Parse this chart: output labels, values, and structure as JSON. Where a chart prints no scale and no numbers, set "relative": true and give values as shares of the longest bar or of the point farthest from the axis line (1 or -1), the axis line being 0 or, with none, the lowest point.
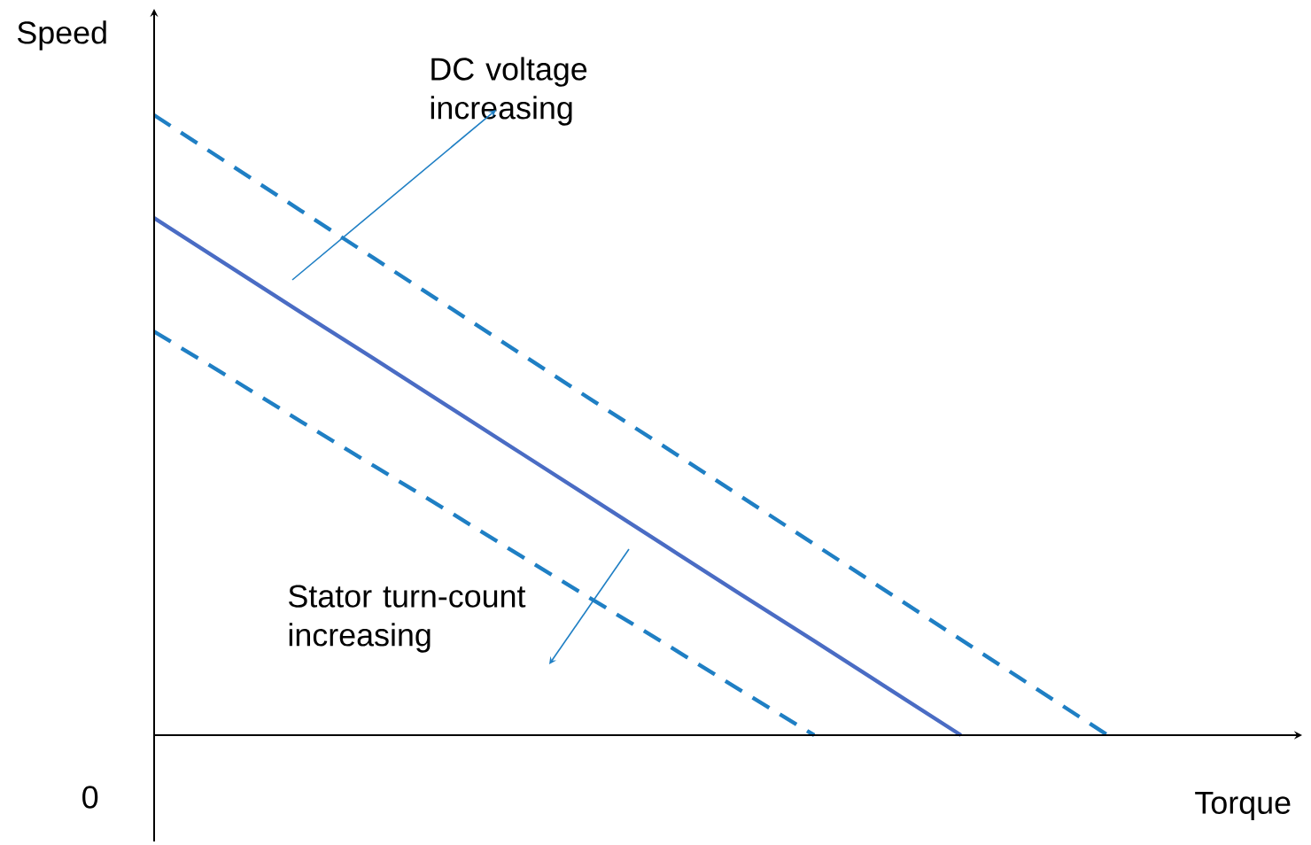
{
  "chart_data": {
    "type": "line",
    "relative": true,
    "xlabel": "Torque",
    "ylabel": "Speed",
    "marker": "none",
    "categories": [
      null,
      null,
      null,
      null,
      null,
      null,
      null,
      null,
      null,
      null,
      null,
      null,
      null,
      null
    ],
    "series": [
      {
        "color": "#1f7fc4",
        "line_style": "dashed",
        "values": [
          1.0,
          0.923,
          0.846,
          0.769,
          0.692,
          0.615,
          0.538,
          0.462,
          0.385,
          0.308,
          0.231,
          0.154,
          0.077,
          0.0
        ]
      },
      {
        "color": "#4a6cc4",
        "line_style": "solid",
        "values": [
          0.834,
          0.758,
          0.682,
          0.607,
          0.531,
          0.455,
          0.379,
          0.303,
          0.227,
          0.152,
          0.076,
          0.0,
          null,
          null
        ]
      },
      {
        "color": "#1f7fc4",
        "line_style": "dashed",
        "values": [
          0.651,
          0.579,
          0.506,
          0.434,
          0.362,
          0.289,
          0.217,
          0.145,
          0.072,
          0.0,
          null,
          null,
          null,
          null
        ]
      }
    ],
    "annotations": [
      "0",
      "DC voltage increasing",
      "Stator turn-count increasing"
    ]
  }
}
